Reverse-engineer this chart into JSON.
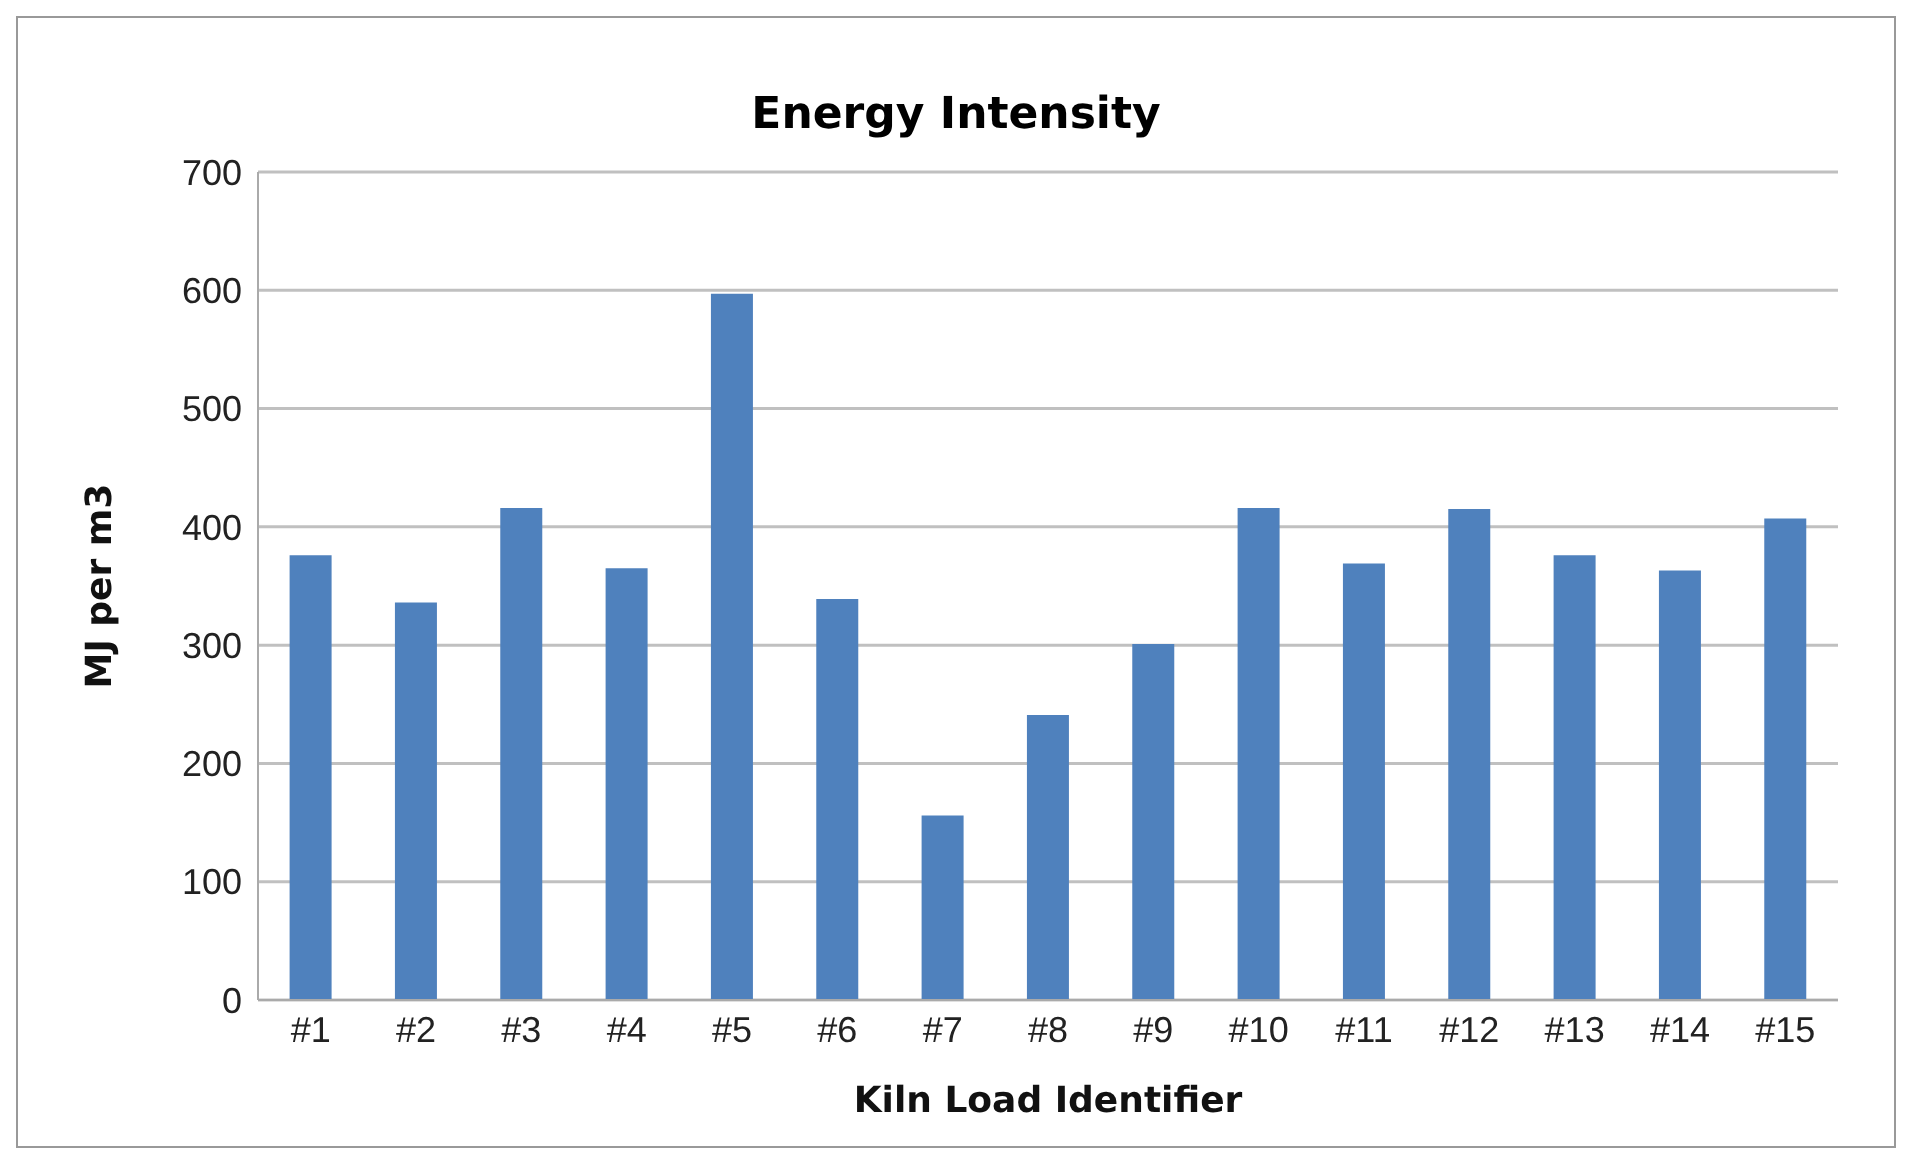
{
  "chart_data": {
    "type": "bar",
    "title": "Energy Intensity",
    "xlabel": "Kiln Load Identifier",
    "ylabel": "MJ per m3",
    "categories": [
      "#1",
      "#2",
      "#3",
      "#4",
      "#5",
      "#6",
      "#7",
      "#8",
      "#9",
      "#10",
      "#11",
      "#12",
      "#13",
      "#14",
      "#15"
    ],
    "values": [
      376,
      336,
      416,
      365,
      597,
      339,
      156,
      241,
      301,
      416,
      369,
      415,
      376,
      363,
      407
    ],
    "color": "#4f81bd",
    "ylim": [
      0,
      700
    ],
    "yticks": [
      0,
      100,
      200,
      300,
      400,
      500,
      600,
      700
    ],
    "grid": "y"
  }
}
